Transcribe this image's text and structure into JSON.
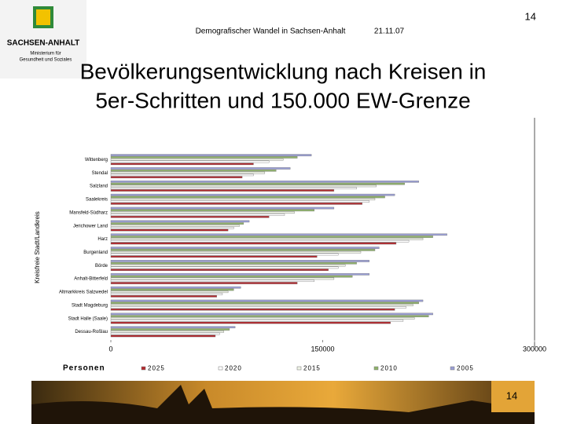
{
  "header": {
    "page_number": "14",
    "subtitle": "Demografischer Wandel in Sachsen-Anhalt",
    "date": "21.11.07"
  },
  "logo": {
    "name": "SACHSEN-ANHALT",
    "ministry_lines": [
      "Ministerium für",
      "Gesundheit und Soziales"
    ]
  },
  "title_lines": [
    "Bevölkerungsentwicklung nach Kreisen in",
    "5er-Schritten und 150.000 EW-Grenze"
  ],
  "chart_data": {
    "type": "bar",
    "orientation": "horizontal",
    "y_label": "Kreisfreie Stadt/Landkreis",
    "x_label": "Personen",
    "categories": [
      "Wittenberg",
      "Stendal",
      "Salzland",
      "Saalekreis",
      "Mansfeld-Südharz",
      "Jerichower Land",
      "Harz",
      "Burgenland",
      "Börde",
      "Anhalt-Bitterfeld",
      "Altmarkkreis Salzwedel",
      "Stadt Magdeburg",
      "Stadt Halle (Saale)",
      "Dessau-Roßlau"
    ],
    "series": [
      {
        "name": "2025",
        "color": "#b3282d",
        "values": [
          101000,
          93000,
          158000,
          178000,
          112000,
          83000,
          202000,
          146000,
          154000,
          132000,
          75000,
          201000,
          198000,
          74000
        ]
      },
      {
        "name": "2020",
        "color": "#ffffff",
        "values": [
          112000,
          101000,
          174000,
          183000,
          123000,
          87000,
          211000,
          161000,
          161000,
          144000,
          79000,
          209000,
          207000,
          77000
        ]
      },
      {
        "name": "2015",
        "color": "#eef3e6",
        "values": [
          122000,
          109000,
          188000,
          187000,
          130000,
          91000,
          221000,
          177000,
          166000,
          158000,
          83000,
          214000,
          215000,
          80000
        ]
      },
      {
        "name": "2010",
        "color": "#8fb36a",
        "values": [
          132000,
          117000,
          208000,
          194000,
          144000,
          94000,
          228000,
          187000,
          174000,
          171000,
          87000,
          218000,
          225000,
          84000
        ]
      },
      {
        "name": "2005",
        "color": "#9a9fd6",
        "values": [
          142000,
          127000,
          218000,
          201000,
          158000,
          98000,
          238000,
          190000,
          183000,
          183000,
          92000,
          221000,
          228000,
          88000
        ]
      }
    ],
    "xlim": [
      0,
      300000
    ],
    "xticks": [
      0,
      150000,
      300000
    ]
  },
  "footer": {
    "page_number": "14"
  }
}
